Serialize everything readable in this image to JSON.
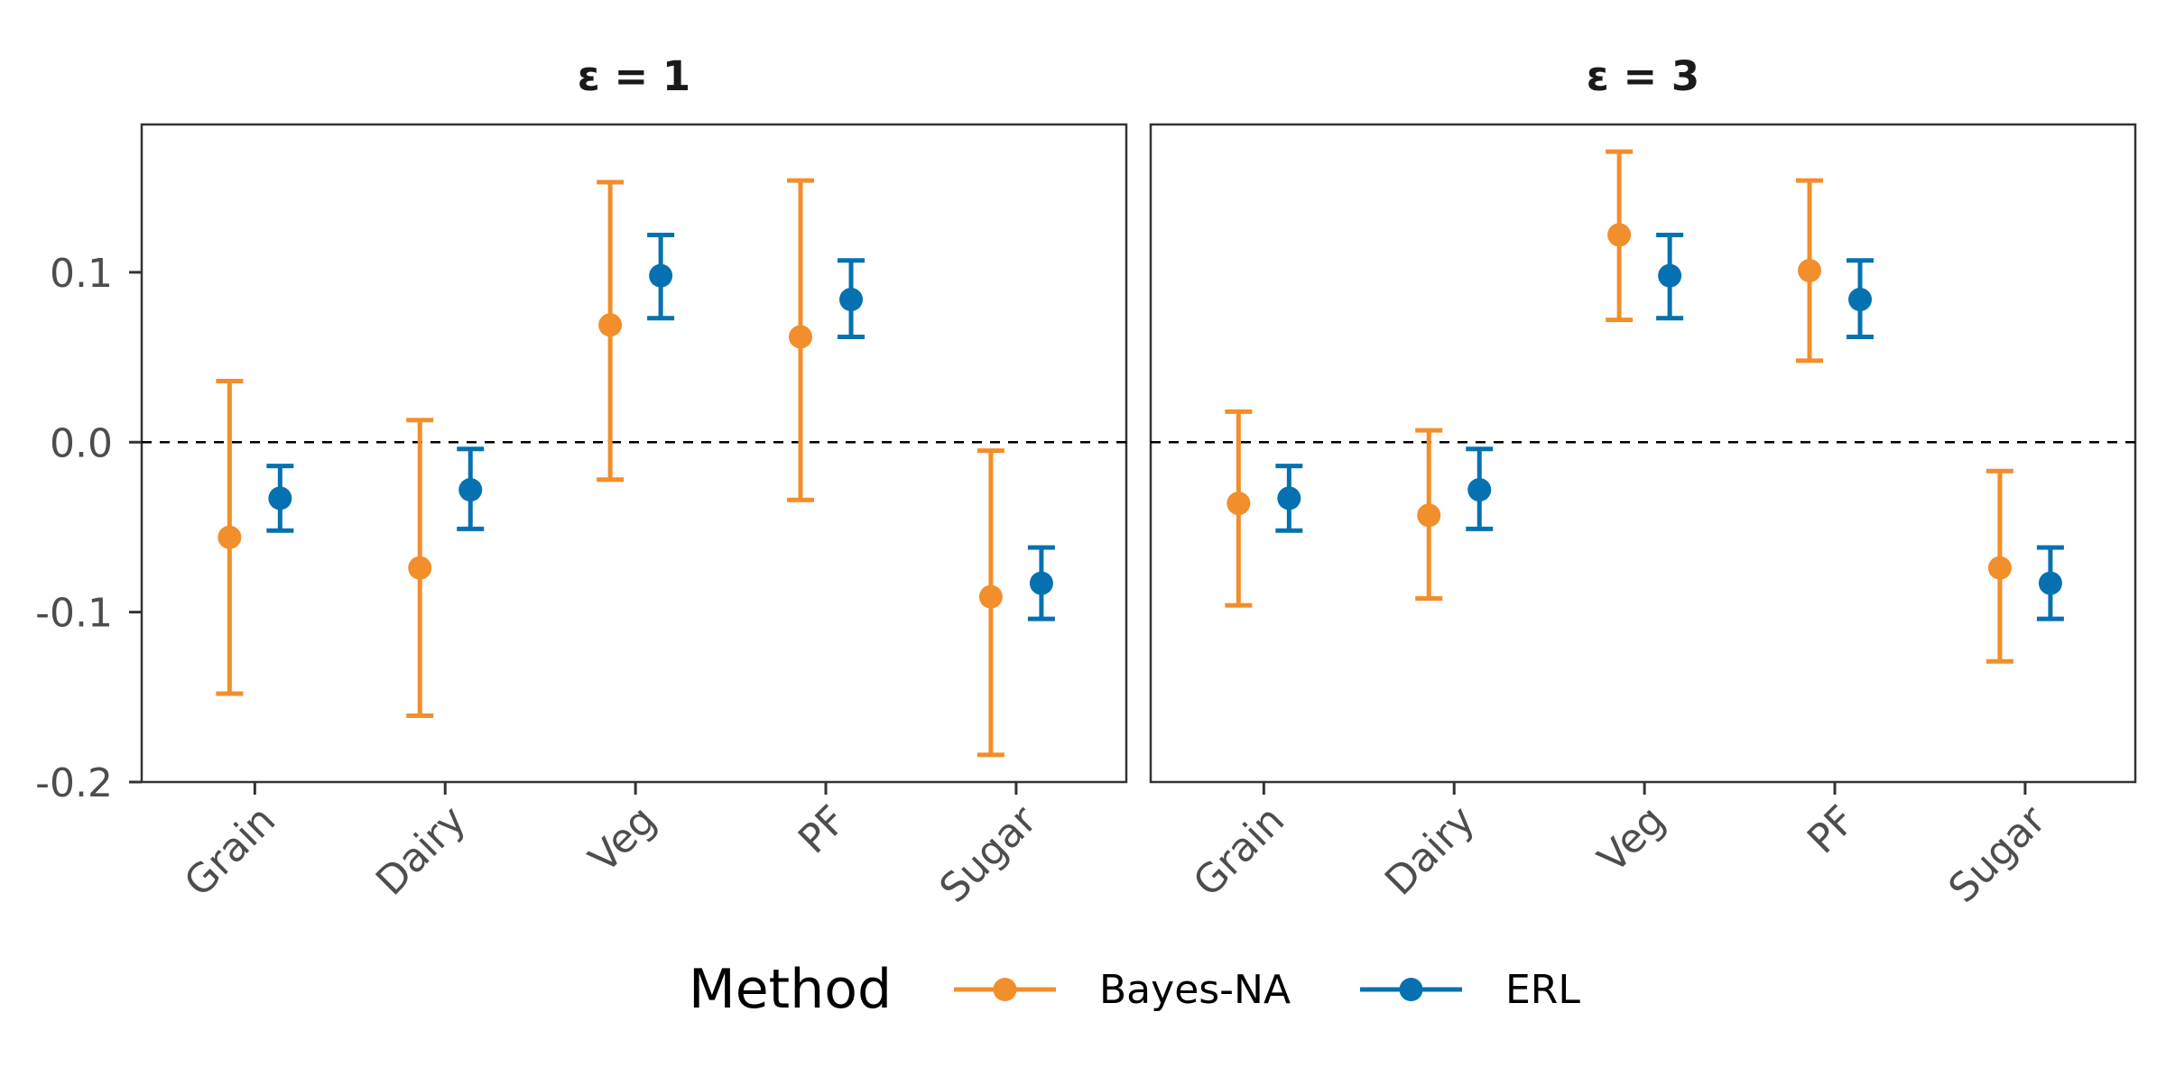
{
  "chart_data": {
    "type": "errorbar",
    "facet_variable": "ε",
    "facets": [
      {
        "title": "ε = 1",
        "series": [
          {
            "name": "Bayes-NA",
            "points": [
              {
                "category": "Grain",
                "estimate": -0.056,
                "lower": -0.148,
                "upper": 0.036
              },
              {
                "category": "Dairy",
                "estimate": -0.074,
                "lower": -0.161,
                "upper": 0.013
              },
              {
                "category": "Veg",
                "estimate": 0.069,
                "lower": -0.022,
                "upper": 0.153
              },
              {
                "category": "PF",
                "estimate": 0.062,
                "lower": -0.034,
                "upper": 0.154
              },
              {
                "category": "Sugar",
                "estimate": -0.091,
                "lower": -0.184,
                "upper": -0.005
              }
            ]
          },
          {
            "name": "ERL",
            "points": [
              {
                "category": "Grain",
                "estimate": -0.033,
                "lower": -0.052,
                "upper": -0.014
              },
              {
                "category": "Dairy",
                "estimate": -0.028,
                "lower": -0.051,
                "upper": -0.004
              },
              {
                "category": "Veg",
                "estimate": 0.098,
                "lower": 0.073,
                "upper": 0.122
              },
              {
                "category": "PF",
                "estimate": 0.084,
                "lower": 0.062,
                "upper": 0.107
              },
              {
                "category": "Sugar",
                "estimate": -0.083,
                "lower": -0.104,
                "upper": -0.062
              }
            ]
          }
        ]
      },
      {
        "title": "ε = 3",
        "series": [
          {
            "name": "Bayes-NA",
            "points": [
              {
                "category": "Grain",
                "estimate": -0.036,
                "lower": -0.096,
                "upper": 0.018
              },
              {
                "category": "Dairy",
                "estimate": -0.043,
                "lower": -0.092,
                "upper": 0.007
              },
              {
                "category": "Veg",
                "estimate": 0.122,
                "lower": 0.072,
                "upper": 0.171
              },
              {
                "category": "PF",
                "estimate": 0.101,
                "lower": 0.048,
                "upper": 0.154
              },
              {
                "category": "Sugar",
                "estimate": -0.074,
                "lower": -0.129,
                "upper": -0.017
              }
            ]
          },
          {
            "name": "ERL",
            "points": [
              {
                "category": "Grain",
                "estimate": -0.033,
                "lower": -0.052,
                "upper": -0.014
              },
              {
                "category": "Dairy",
                "estimate": -0.028,
                "lower": -0.051,
                "upper": -0.004
              },
              {
                "category": "Veg",
                "estimate": 0.098,
                "lower": 0.073,
                "upper": 0.122
              },
              {
                "category": "PF",
                "estimate": 0.084,
                "lower": 0.062,
                "upper": 0.107
              },
              {
                "category": "Sugar",
                "estimate": -0.083,
                "lower": -0.104,
                "upper": -0.062
              }
            ]
          }
        ]
      }
    ],
    "categories": [
      "Grain",
      "Dairy",
      "Veg",
      "PF",
      "Sugar"
    ],
    "y_ticks": [
      -0.2,
      -0.1,
      0.0,
      0.1
    ],
    "y_tick_labels": [
      "-0.2",
      "-0.1",
      "0.0",
      "0.1"
    ],
    "ylim": [
      -0.2,
      0.187
    ],
    "reference_line": 0.0,
    "xlabel": "",
    "ylabel": "",
    "legend": {
      "title": "Method",
      "position": "bottom",
      "entries": [
        {
          "name": "Bayes-NA",
          "color": "#f28e2b"
        },
        {
          "name": "ERL",
          "color": "#0571b0"
        }
      ]
    },
    "grid": false
  }
}
